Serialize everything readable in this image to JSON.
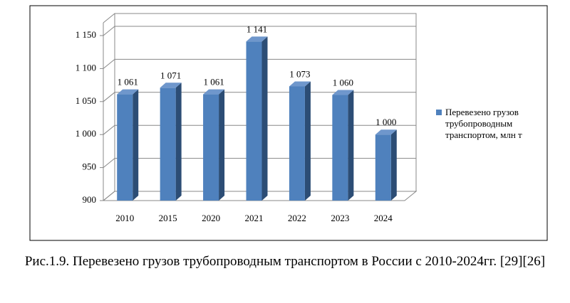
{
  "chart_data": {
    "type": "bar",
    "categories": [
      "2010",
      "2015",
      "2020",
      "2021",
      "2022",
      "2023",
      "2024"
    ],
    "series": [
      {
        "name": "Перевезено грузов трубопроводным транспортом, млн т",
        "color": "#4f81bd",
        "values": [
          1061,
          1071,
          1061,
          1141,
          1073,
          1060,
          1000
        ],
        "value_labels": [
          "1 061",
          "1 071",
          "1 061",
          "1 141",
          "1 073",
          "1 060",
          "1 000"
        ]
      }
    ],
    "ylim": [
      900,
      1150
    ],
    "yticks": [
      900,
      950,
      {
        "value": 1000,
        "label": "1 000"
      },
      {
        "value": 1050,
        "label": "1 050"
      },
      {
        "value": 1100,
        "label": "1 100"
      },
      {
        "value": 1150,
        "label": "1 150"
      }
    ],
    "grid": true,
    "legend": "right",
    "caption": "Рис.1.9. Перевезено грузов трубопроводным транспортом в России с 2010-2024гг. [29][26]"
  }
}
